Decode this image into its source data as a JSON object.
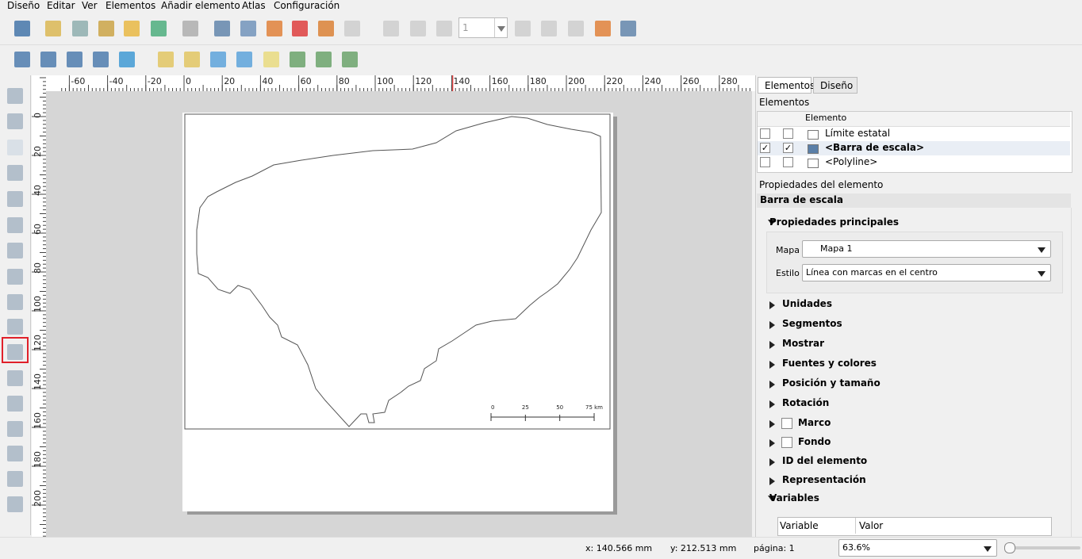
{
  "menu": [
    "Diseño",
    "Editar",
    "Ver",
    "Elementos",
    "Añadir elemento",
    "Atlas",
    "Configuración"
  ],
  "toolbar": {
    "page_field": "1"
  },
  "ruler": {
    "horizontal": [
      -60,
      -40,
      -20,
      0,
      20,
      40,
      60,
      80,
      100,
      120,
      140,
      160,
      180,
      200,
      220,
      240,
      260,
      280
    ],
    "vertical": [
      0,
      20,
      40,
      60,
      80,
      100,
      120,
      140,
      160,
      180,
      200
    ]
  },
  "canvas": {
    "scale_bar": {
      "labels": [
        "0",
        "25",
        "50",
        "75 km"
      ]
    }
  },
  "panel": {
    "tabs": [
      "Elementos",
      "Diseño"
    ],
    "items_title": "Elementos",
    "column": "Elemento",
    "items": [
      {
        "name": "Límite estatal",
        "visible": false,
        "locked": false
      },
      {
        "name": "<Barra de escala>",
        "visible": true,
        "locked": true,
        "selected": true
      },
      {
        "name": "<Polyline>",
        "visible": false,
        "locked": false
      }
    ],
    "props_title": "Propiedades del elemento",
    "element": "Barra de escala",
    "main_group": "Propiedades principales",
    "map_label": "Mapa",
    "map_value": "Mapa 1",
    "style_label": "Estilo",
    "style_value": "Línea con marcas en el centro",
    "sections": [
      {
        "label": "Unidades"
      },
      {
        "label": "Segmentos"
      },
      {
        "label": "Mostrar"
      },
      {
        "label": "Fuentes y colores"
      },
      {
        "label": "Posición y tamaño"
      },
      {
        "label": "Rotación"
      },
      {
        "label": "Marco",
        "checkbox": false
      },
      {
        "label": "Fondo",
        "checkbox": false
      },
      {
        "label": "ID del elemento"
      },
      {
        "label": "Representación"
      }
    ],
    "variables": "Variables",
    "var_columns": [
      "Variable",
      "Valor"
    ]
  },
  "status": {
    "x": "x: 140.566 mm",
    "y": "y: 212.513 mm",
    "page": "página: 1",
    "zoom": "63.6%"
  }
}
